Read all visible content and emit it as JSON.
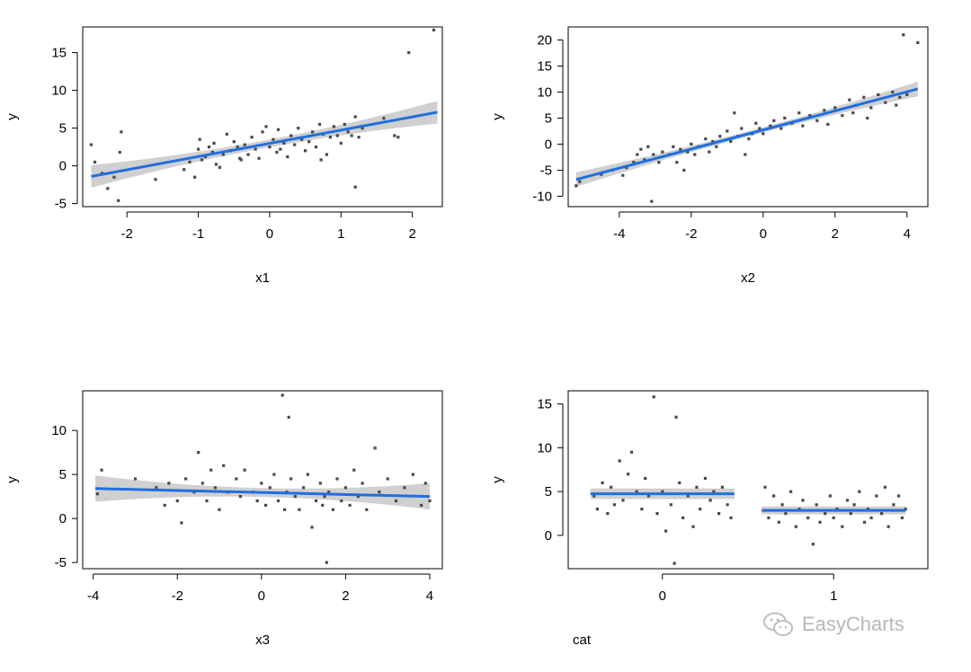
{
  "watermark": {
    "text": "EasyCharts"
  },
  "colors": {
    "fit_line": "#1f6fe0",
    "confidence_band": "#c8c8c8",
    "points": "#4a4a4a",
    "axis": "#000000"
  },
  "chart_data": [
    {
      "id": "panel-x1",
      "type": "scatter",
      "xlabel": "x1",
      "ylabel": "y",
      "xlim": [
        -2.62,
        2.42
      ],
      "ylim": [
        -5.4,
        18.4
      ],
      "xticks": [
        -2,
        -1,
        0,
        1,
        2
      ],
      "yticks": [
        -5,
        0,
        5,
        10,
        15
      ],
      "fit": {
        "x": [
          -2.5,
          2.35
        ],
        "y": [
          -1.4,
          7.1
        ],
        "band": [
          1.5,
          0.5,
          1.5
        ]
      },
      "points": [
        [
          -2.5,
          2.8
        ],
        [
          -2.45,
          0.5
        ],
        [
          -2.35,
          -1.0
        ],
        [
          -2.27,
          -3.0
        ],
        [
          -2.18,
          -1.5
        ],
        [
          -2.12,
          -4.6
        ],
        [
          -2.08,
          4.5
        ],
        [
          -2.1,
          1.8
        ],
        [
          -1.6,
          -1.8
        ],
        [
          -1.2,
          -0.5
        ],
        [
          -1.12,
          0.5
        ],
        [
          -1.05,
          -1.5
        ],
        [
          -1.0,
          2.2
        ],
        [
          -0.98,
          3.5
        ],
        [
          -0.95,
          0.8
        ],
        [
          -0.9,
          1.2
        ],
        [
          -0.85,
          2.5
        ],
        [
          -0.8,
          1.8
        ],
        [
          -0.78,
          3.0
        ],
        [
          -0.75,
          0.2
        ],
        [
          -0.7,
          -0.2
        ],
        [
          -0.65,
          1.5
        ],
        [
          -0.6,
          4.2
        ],
        [
          -0.55,
          2.0
        ],
        [
          -0.5,
          3.2
        ],
        [
          -0.45,
          2.5
        ],
        [
          -0.42,
          1.0
        ],
        [
          -0.4,
          0.8
        ],
        [
          -0.35,
          2.8
        ],
        [
          -0.3,
          1.5
        ],
        [
          -0.25,
          3.8
        ],
        [
          -0.2,
          2.2
        ],
        [
          -0.15,
          1.0
        ],
        [
          -0.1,
          4.5
        ],
        [
          -0.05,
          5.2
        ],
        [
          0.0,
          2.5
        ],
        [
          0.05,
          3.5
        ],
        [
          0.1,
          1.8
        ],
        [
          0.12,
          4.8
        ],
        [
          0.15,
          2.2
        ],
        [
          0.2,
          3.0
        ],
        [
          0.25,
          1.2
        ],
        [
          0.3,
          4.0
        ],
        [
          0.35,
          2.8
        ],
        [
          0.4,
          5.0
        ],
        [
          0.45,
          3.5
        ],
        [
          0.5,
          2.0
        ],
        [
          0.55,
          3.2
        ],
        [
          0.6,
          4.5
        ],
        [
          0.65,
          2.5
        ],
        [
          0.7,
          5.5
        ],
        [
          0.72,
          0.8
        ],
        [
          0.75,
          4.2
        ],
        [
          0.8,
          1.5
        ],
        [
          0.85,
          3.8
        ],
        [
          0.9,
          5.2
        ],
        [
          0.95,
          4.0
        ],
        [
          1.0,
          3.0
        ],
        [
          1.05,
          5.5
        ],
        [
          1.1,
          4.5
        ],
        [
          1.15,
          4.0
        ],
        [
          1.2,
          -2.8
        ],
        [
          1.25,
          3.8
        ],
        [
          1.3,
          5.0
        ],
        [
          1.2,
          6.5
        ],
        [
          1.6,
          6.3
        ],
        [
          1.75,
          4.0
        ],
        [
          1.8,
          3.8
        ],
        [
          1.95,
          15.0
        ],
        [
          2.3,
          18.0
        ]
      ]
    },
    {
      "id": "panel-x2",
      "type": "scatter",
      "xlabel": "x2",
      "ylabel": "y",
      "xlim": [
        -5.42,
        4.58
      ],
      "ylim": [
        -12.0,
        22.5
      ],
      "xticks": [
        -4,
        -2,
        0,
        2,
        4
      ],
      "yticks": [
        -10,
        -5,
        0,
        5,
        10,
        15,
        20
      ],
      "fit": {
        "x": [
          -5.2,
          4.3
        ],
        "y": [
          -6.8,
          10.6
        ],
        "band": [
          1.4,
          0.5,
          1.4
        ]
      },
      "points": [
        [
          -5.2,
          -8.0
        ],
        [
          -5.1,
          -7.2
        ],
        [
          -4.5,
          -5.8
        ],
        [
          -4.2,
          -5.0
        ],
        [
          -3.9,
          -6.0
        ],
        [
          -3.8,
          -4.5
        ],
        [
          -3.6,
          -3.5
        ],
        [
          -3.5,
          -2.0
        ],
        [
          -3.4,
          -1.0
        ],
        [
          -3.3,
          -3.0
        ],
        [
          -3.2,
          -0.5
        ],
        [
          -3.1,
          -11.0
        ],
        [
          -3.05,
          -2.0
        ],
        [
          -2.9,
          -3.5
        ],
        [
          -2.8,
          -1.5
        ],
        [
          -2.6,
          -2.0
        ],
        [
          -2.5,
          -0.5
        ],
        [
          -2.4,
          -3.5
        ],
        [
          -2.3,
          -1.0
        ],
        [
          -2.2,
          -5.0
        ],
        [
          -2.1,
          -1.5
        ],
        [
          -2.0,
          0.0
        ],
        [
          -1.9,
          -2.0
        ],
        [
          -1.8,
          -0.5
        ],
        [
          -1.6,
          1.0
        ],
        [
          -1.5,
          -1.5
        ],
        [
          -1.4,
          0.5
        ],
        [
          -1.3,
          -0.5
        ],
        [
          -1.2,
          1.5
        ],
        [
          -1.0,
          2.5
        ],
        [
          -0.9,
          0.5
        ],
        [
          -0.8,
          6.0
        ],
        [
          -0.7,
          1.5
        ],
        [
          -0.6,
          3.0
        ],
        [
          -0.5,
          -2.0
        ],
        [
          -0.4,
          1.0
        ],
        [
          -0.3,
          2.0
        ],
        [
          -0.2,
          4.0
        ],
        [
          -0.1,
          3.0
        ],
        [
          0.0,
          2.0
        ],
        [
          0.2,
          3.5
        ],
        [
          0.3,
          4.5
        ],
        [
          0.5,
          3.0
        ],
        [
          0.6,
          5.0
        ],
        [
          0.8,
          4.0
        ],
        [
          1.0,
          6.0
        ],
        [
          1.1,
          3.5
        ],
        [
          1.3,
          5.5
        ],
        [
          1.5,
          4.5
        ],
        [
          1.7,
          6.5
        ],
        [
          1.8,
          3.8
        ],
        [
          2.0,
          7.0
        ],
        [
          2.2,
          5.5
        ],
        [
          2.4,
          8.5
        ],
        [
          2.5,
          6.0
        ],
        [
          2.6,
          7.5
        ],
        [
          2.8,
          9.0
        ],
        [
          2.9,
          5.0
        ],
        [
          3.0,
          7.0
        ],
        [
          3.2,
          9.5
        ],
        [
          3.4,
          8.0
        ],
        [
          3.6,
          10.0
        ],
        [
          3.7,
          7.5
        ],
        [
          3.8,
          9.0
        ],
        [
          3.9,
          21.0
        ],
        [
          4.0,
          9.5
        ],
        [
          4.3,
          19.5
        ]
      ]
    },
    {
      "id": "panel-x3",
      "type": "scatter",
      "xlabel": "x3",
      "ylabel": "y",
      "xlim": [
        -4.25,
        4.3
      ],
      "ylim": [
        -5.7,
        14.5
      ],
      "xticks": [
        -4,
        -2,
        0,
        2,
        4
      ],
      "yticks": [
        -5,
        0,
        5,
        10
      ],
      "fit": {
        "x": [
          -3.95,
          4.0
        ],
        "y": [
          3.4,
          2.5
        ],
        "band": [
          1.5,
          0.5,
          1.3
        ]
      },
      "points": [
        [
          -3.9,
          2.8
        ],
        [
          -3.8,
          5.5
        ],
        [
          -3.0,
          4.5
        ],
        [
          -2.5,
          3.5
        ],
        [
          -2.3,
          1.5
        ],
        [
          -2.2,
          4.0
        ],
        [
          -2.0,
          2.0
        ],
        [
          -1.9,
          -0.5
        ],
        [
          -1.8,
          4.5
        ],
        [
          -1.6,
          3.0
        ],
        [
          -1.5,
          7.5
        ],
        [
          -1.4,
          4.0
        ],
        [
          -1.3,
          2.0
        ],
        [
          -1.2,
          5.5
        ],
        [
          -1.1,
          3.5
        ],
        [
          -1.0,
          1.0
        ],
        [
          -0.9,
          6.0
        ],
        [
          -0.8,
          3.0
        ],
        [
          -0.6,
          4.5
        ],
        [
          -0.5,
          2.5
        ],
        [
          -0.4,
          5.5
        ],
        [
          -0.2,
          3.0
        ],
        [
          -0.1,
          2.0
        ],
        [
          0.0,
          4.0
        ],
        [
          0.1,
          1.5
        ],
        [
          0.2,
          3.5
        ],
        [
          0.3,
          5.0
        ],
        [
          0.4,
          2.0
        ],
        [
          0.5,
          14.0
        ],
        [
          0.55,
          1.0
        ],
        [
          0.6,
          3.0
        ],
        [
          0.65,
          11.5
        ],
        [
          0.7,
          4.5
        ],
        [
          0.8,
          2.5
        ],
        [
          0.9,
          1.0
        ],
        [
          1.0,
          3.5
        ],
        [
          1.1,
          5.0
        ],
        [
          1.2,
          -1.0
        ],
        [
          1.3,
          2.0
        ],
        [
          1.4,
          4.0
        ],
        [
          1.45,
          1.5
        ],
        [
          1.5,
          2.5
        ],
        [
          1.55,
          -5.0
        ],
        [
          1.6,
          3.0
        ],
        [
          1.7,
          1.0
        ],
        [
          1.8,
          4.5
        ],
        [
          1.9,
          2.0
        ],
        [
          2.0,
          3.5
        ],
        [
          2.1,
          1.5
        ],
        [
          2.2,
          5.5
        ],
        [
          2.3,
          2.5
        ],
        [
          2.4,
          4.0
        ],
        [
          2.5,
          1.0
        ],
        [
          2.7,
          8.0
        ],
        [
          2.8,
          3.0
        ],
        [
          3.0,
          4.5
        ],
        [
          3.2,
          2.0
        ],
        [
          3.4,
          3.5
        ],
        [
          3.6,
          5.0
        ],
        [
          3.8,
          1.5
        ],
        [
          3.9,
          4.0
        ],
        [
          4.0,
          2.0
        ]
      ]
    },
    {
      "id": "panel-cat",
      "type": "scatter",
      "xlabel": "cat",
      "ylabel": "y",
      "xlim": [
        -0.55,
        1.55
      ],
      "ylim": [
        -3.8,
        16.5
      ],
      "xticks": [
        0,
        1
      ],
      "yticks": [
        0,
        5,
        10,
        15
      ],
      "fit_segments": [
        {
          "x": [
            -0.42,
            0.42
          ],
          "y": [
            4.75,
            4.75
          ],
          "band": 0.6
        },
        {
          "x": [
            0.58,
            1.42
          ],
          "y": [
            2.85,
            2.85
          ],
          "band": 0.45
        }
      ],
      "points": [
        [
          -0.4,
          4.5
        ],
        [
          -0.38,
          3.0
        ],
        [
          -0.35,
          6.0
        ],
        [
          -0.32,
          2.5
        ],
        [
          -0.3,
          5.5
        ],
        [
          -0.28,
          3.5
        ],
        [
          -0.25,
          8.5
        ],
        [
          -0.23,
          4.0
        ],
        [
          -0.2,
          7.0
        ],
        [
          -0.18,
          9.5
        ],
        [
          -0.15,
          5.0
        ],
        [
          -0.12,
          3.0
        ],
        [
          -0.1,
          6.5
        ],
        [
          -0.08,
          4.5
        ],
        [
          -0.05,
          15.8
        ],
        [
          -0.03,
          2.5
        ],
        [
          0.0,
          5.0
        ],
        [
          0.02,
          0.5
        ],
        [
          0.05,
          3.5
        ],
        [
          0.07,
          -3.2
        ],
        [
          0.08,
          13.5
        ],
        [
          0.1,
          6.0
        ],
        [
          0.12,
          2.0
        ],
        [
          0.15,
          4.5
        ],
        [
          0.18,
          1.0
        ],
        [
          0.2,
          5.5
        ],
        [
          0.22,
          3.0
        ],
        [
          0.25,
          6.5
        ],
        [
          0.28,
          4.0
        ],
        [
          0.3,
          5.0
        ],
        [
          0.33,
          2.5
        ],
        [
          0.35,
          5.5
        ],
        [
          0.38,
          3.5
        ],
        [
          0.4,
          2.0
        ],
        [
          0.6,
          5.5
        ],
        [
          0.62,
          2.0
        ],
        [
          0.65,
          4.5
        ],
        [
          0.68,
          1.5
        ],
        [
          0.7,
          3.5
        ],
        [
          0.72,
          2.5
        ],
        [
          0.75,
          5.0
        ],
        [
          0.78,
          1.0
        ],
        [
          0.8,
          3.0
        ],
        [
          0.82,
          4.0
        ],
        [
          0.85,
          2.0
        ],
        [
          0.88,
          -1.0
        ],
        [
          0.9,
          3.5
        ],
        [
          0.92,
          1.5
        ],
        [
          0.95,
          2.5
        ],
        [
          0.98,
          4.5
        ],
        [
          1.0,
          2.0
        ],
        [
          1.02,
          3.0
        ],
        [
          1.05,
          1.0
        ],
        [
          1.08,
          4.0
        ],
        [
          1.1,
          2.5
        ],
        [
          1.12,
          3.5
        ],
        [
          1.15,
          5.0
        ],
        [
          1.18,
          1.5
        ],
        [
          1.2,
          3.0
        ],
        [
          1.22,
          2.0
        ],
        [
          1.25,
          4.5
        ],
        [
          1.28,
          2.5
        ],
        [
          1.3,
          5.5
        ],
        [
          1.32,
          1.0
        ],
        [
          1.35,
          3.5
        ],
        [
          1.38,
          4.5
        ],
        [
          1.4,
          2.0
        ],
        [
          1.42,
          3.0
        ]
      ]
    }
  ]
}
